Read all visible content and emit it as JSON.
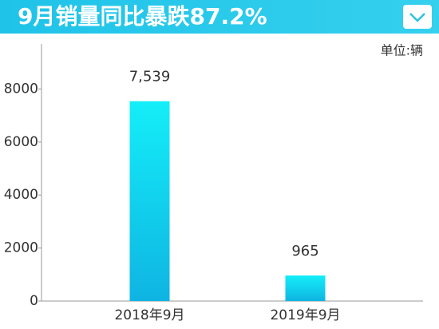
{
  "chart_data": {
    "type": "bar",
    "title": "9月销量同比暴跌87.2%",
    "unit_label": "单位:辆",
    "categories": [
      "2018年9月",
      "2019年9月"
    ],
    "values": [
      7539,
      965
    ],
    "value_labels": [
      "7,539",
      "965"
    ],
    "ylim": [
      0,
      9700
    ],
    "yticks": [
      0,
      2000,
      4000,
      6000,
      8000
    ]
  }
}
